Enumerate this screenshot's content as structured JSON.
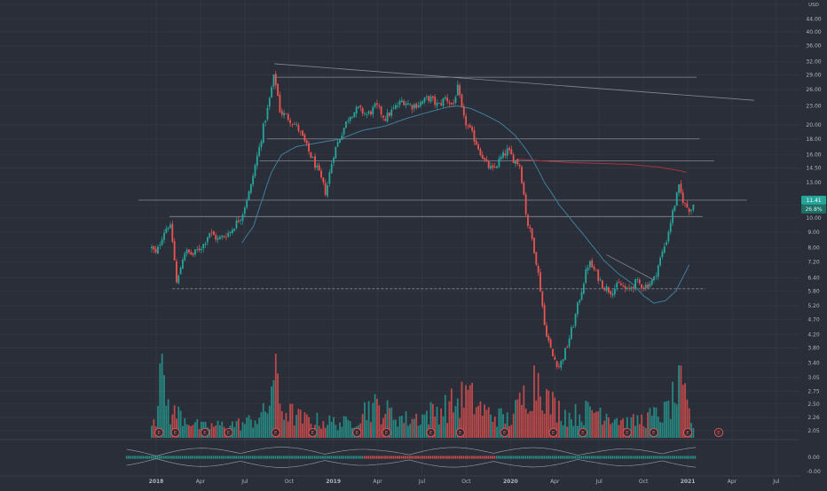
{
  "chart_data": {
    "type": "candlestick",
    "title": "",
    "price_axis": {
      "scale": "log",
      "ticks": [
        2.05,
        2.26,
        2.5,
        2.75,
        3.05,
        3.4,
        3.8,
        4.2,
        4.7,
        5.2,
        5.8,
        6.4,
        7.2,
        8.0,
        9.0,
        10.0,
        11.0,
        13.0,
        14.5,
        16.0,
        18.0,
        20.0,
        23.0,
        26.0,
        29.0,
        32.0,
        36.0,
        40.0,
        44.0,
        49.0
      ],
      "tick_labels": [
        "2.05",
        "2.26",
        "2.50",
        "2.75",
        "3.05",
        "3.40",
        "3.80",
        "4.20",
        "4.70",
        "5.20",
        "5.80",
        "6.40",
        "7.20",
        "8.00",
        "9.00",
        "10.00",
        "11.00",
        "13.00",
        "14.50",
        "16.00",
        "18.00",
        "20.00",
        "23.00",
        "26.00",
        "29.00",
        "32.00",
        "36.00",
        "40.00",
        "44.00",
        "49.00"
      ],
      "top_label": "USD",
      "range": [
        1.95,
        52.0
      ]
    },
    "oscillator_axis": {
      "tick_labels": [
        "0.00",
        "-0.00"
      ]
    },
    "time_axis": {
      "labels": [
        "2018",
        "Apr",
        "Jul",
        "Oct",
        "2019",
        "Apr",
        "Jul",
        "Oct",
        "2020",
        "Apr",
        "Jul",
        "Oct",
        "2021",
        "Apr",
        "Jul"
      ],
      "positions_month": [
        0,
        3,
        6,
        9,
        12,
        15,
        18,
        21,
        24,
        27,
        30,
        33,
        36,
        39,
        42
      ],
      "bold": [
        "2018",
        "2019",
        "2020",
        "2021"
      ]
    },
    "current_price": {
      "value": 11.41,
      "label": "11.41",
      "countdown": "26.8%"
    },
    "price_keypoints": [
      {
        "m": -0.3,
        "p": 8.0
      },
      {
        "m": 0.0,
        "p": 7.6
      },
      {
        "m": 0.5,
        "p": 9.0
      },
      {
        "m": 0.9,
        "p": 9.6
      },
      {
        "m": 1.1,
        "p": 8.4
      },
      {
        "m": 1.4,
        "p": 6.0
      },
      {
        "m": 1.9,
        "p": 7.8
      },
      {
        "m": 2.5,
        "p": 7.6
      },
      {
        "m": 3.2,
        "p": 8.2
      },
      {
        "m": 3.6,
        "p": 9.0
      },
      {
        "m": 4.2,
        "p": 8.5
      },
      {
        "m": 5.0,
        "p": 9.0
      },
      {
        "m": 5.8,
        "p": 10.2
      },
      {
        "m": 6.4,
        "p": 12.5
      },
      {
        "m": 7.0,
        "p": 17.0
      },
      {
        "m": 7.6,
        "p": 23.0
      },
      {
        "m": 8.0,
        "p": 29.0
      },
      {
        "m": 8.4,
        "p": 22.0
      },
      {
        "m": 9.0,
        "p": 21.0
      },
      {
        "m": 9.6,
        "p": 19.5
      },
      {
        "m": 10.3,
        "p": 16.5
      },
      {
        "m": 11.0,
        "p": 14.0
      },
      {
        "m": 11.5,
        "p": 12.0
      },
      {
        "m": 12.0,
        "p": 16.0
      },
      {
        "m": 12.6,
        "p": 19.0
      },
      {
        "m": 13.1,
        "p": 21.5
      },
      {
        "m": 13.7,
        "p": 22.5
      },
      {
        "m": 14.3,
        "p": 21.5
      },
      {
        "m": 14.9,
        "p": 23.0
      },
      {
        "m": 15.5,
        "p": 21.0
      },
      {
        "m": 16.1,
        "p": 22.5
      },
      {
        "m": 16.7,
        "p": 24.0
      },
      {
        "m": 17.3,
        "p": 23.0
      },
      {
        "m": 17.9,
        "p": 23.5
      },
      {
        "m": 18.5,
        "p": 24.5
      },
      {
        "m": 19.1,
        "p": 23.0
      },
      {
        "m": 19.6,
        "p": 24.5
      },
      {
        "m": 20.1,
        "p": 23.0
      },
      {
        "m": 20.4,
        "p": 26.5
      },
      {
        "m": 20.8,
        "p": 21.0
      },
      {
        "m": 21.3,
        "p": 19.0
      },
      {
        "m": 21.8,
        "p": 17.0
      },
      {
        "m": 22.3,
        "p": 15.0
      },
      {
        "m": 22.8,
        "p": 14.2
      },
      {
        "m": 23.3,
        "p": 15.5
      },
      {
        "m": 23.8,
        "p": 16.5
      },
      {
        "m": 24.2,
        "p": 15.5
      },
      {
        "m": 24.6,
        "p": 15.0
      },
      {
        "m": 25.1,
        "p": 9.8
      },
      {
        "m": 25.5,
        "p": 8.4
      },
      {
        "m": 26.0,
        "p": 6.0
      },
      {
        "m": 26.3,
        "p": 4.5
      },
      {
        "m": 26.8,
        "p": 3.6
      },
      {
        "m": 27.3,
        "p": 3.3
      },
      {
        "m": 27.8,
        "p": 3.8
      },
      {
        "m": 28.3,
        "p": 4.6
      },
      {
        "m": 28.8,
        "p": 5.8
      },
      {
        "m": 29.3,
        "p": 7.2
      },
      {
        "m": 29.8,
        "p": 6.6
      },
      {
        "m": 30.3,
        "p": 6.0
      },
      {
        "m": 30.8,
        "p": 5.8
      },
      {
        "m": 31.4,
        "p": 6.1
      },
      {
        "m": 31.9,
        "p": 5.8
      },
      {
        "m": 32.5,
        "p": 6.2
      },
      {
        "m": 33.1,
        "p": 6.0
      },
      {
        "m": 33.7,
        "p": 6.3
      },
      {
        "m": 34.2,
        "p": 7.5
      },
      {
        "m": 34.6,
        "p": 8.6
      },
      {
        "m": 35.0,
        "p": 10.5
      },
      {
        "m": 35.4,
        "p": 12.5
      },
      {
        "m": 35.8,
        "p": 11.0
      },
      {
        "m": 36.2,
        "p": 10.6
      },
      {
        "m": 36.5,
        "p": 11.4
      }
    ],
    "volume_keypoints": [
      {
        "m": 0.0,
        "v": 0.3
      },
      {
        "m": 0.2,
        "v": 1.0
      },
      {
        "m": 1.0,
        "v": 0.3
      },
      {
        "m": 1.4,
        "v": 0.35
      },
      {
        "m": 3.0,
        "v": 0.15
      },
      {
        "m": 6.0,
        "v": 0.2
      },
      {
        "m": 7.5,
        "v": 0.35
      },
      {
        "m": 8.0,
        "v": 0.95
      },
      {
        "m": 8.5,
        "v": 0.4
      },
      {
        "m": 10.0,
        "v": 0.25
      },
      {
        "m": 13.0,
        "v": 0.2
      },
      {
        "m": 14.5,
        "v": 0.45
      },
      {
        "m": 17.0,
        "v": 0.25
      },
      {
        "m": 18.0,
        "v": 0.3
      },
      {
        "m": 20.5,
        "v": 0.5
      },
      {
        "m": 21.0,
        "v": 0.6
      },
      {
        "m": 22.3,
        "v": 0.35
      },
      {
        "m": 24.0,
        "v": 0.25
      },
      {
        "m": 25.0,
        "v": 0.6
      },
      {
        "m": 26.0,
        "v": 0.9
      },
      {
        "m": 26.5,
        "v": 0.5
      },
      {
        "m": 28.0,
        "v": 0.3
      },
      {
        "m": 30.0,
        "v": 0.4
      },
      {
        "m": 32.0,
        "v": 0.2
      },
      {
        "m": 34.5,
        "v": 0.35
      },
      {
        "m": 35.5,
        "v": 0.7
      },
      {
        "m": 36.5,
        "v": 0.1
      }
    ],
    "ma_fast_keypoints": [
      {
        "m": 5.8,
        "p": 8.3
      },
      {
        "m": 6.6,
        "p": 9.4
      },
      {
        "m": 7.2,
        "p": 11.5
      },
      {
        "m": 7.8,
        "p": 14.0
      },
      {
        "m": 8.5,
        "p": 16.0
      },
      {
        "m": 9.5,
        "p": 17.0
      },
      {
        "m": 11.0,
        "p": 17.5
      },
      {
        "m": 12.5,
        "p": 18.0
      },
      {
        "m": 14.0,
        "p": 19.2
      },
      {
        "m": 15.5,
        "p": 19.8
      },
      {
        "m": 17.0,
        "p": 21.0
      },
      {
        "m": 18.5,
        "p": 22.0
      },
      {
        "m": 19.7,
        "p": 22.8
      },
      {
        "m": 20.4,
        "p": 23.0
      },
      {
        "m": 21.3,
        "p": 22.6
      },
      {
        "m": 22.3,
        "p": 21.5
      },
      {
        "m": 23.3,
        "p": 20.3
      },
      {
        "m": 24.3,
        "p": 18.5
      },
      {
        "m": 25.3,
        "p": 16.0
      },
      {
        "m": 26.3,
        "p": 13.0
      },
      {
        "m": 27.3,
        "p": 11.0
      },
      {
        "m": 28.3,
        "p": 9.6
      },
      {
        "m": 29.3,
        "p": 8.4
      },
      {
        "m": 30.3,
        "p": 7.3
      },
      {
        "m": 31.3,
        "p": 6.6
      },
      {
        "m": 32.3,
        "p": 6.1
      },
      {
        "m": 33.0,
        "p": 5.6
      },
      {
        "m": 33.7,
        "p": 5.3
      },
      {
        "m": 34.5,
        "p": 5.4
      },
      {
        "m": 35.2,
        "p": 5.8
      },
      {
        "m": 35.8,
        "p": 6.6
      },
      {
        "m": 36.2,
        "p": 7.2
      }
    ],
    "ma_slow_keypoints": [
      {
        "m": 24.4,
        "p": 15.5
      },
      {
        "m": 26.0,
        "p": 15.3
      },
      {
        "m": 28.0,
        "p": 15.1
      },
      {
        "m": 30.0,
        "p": 15.0
      },
      {
        "m": 32.0,
        "p": 14.9
      },
      {
        "m": 34.0,
        "p": 14.6
      },
      {
        "m": 35.5,
        "p": 14.2
      },
      {
        "m": 36.0,
        "p": 14.0
      }
    ],
    "horizontal_levels": [
      {
        "m0": 8.0,
        "m1": 36.6,
        "p": 28.5,
        "style": "solid"
      },
      {
        "m0": 7.5,
        "m1": 36.8,
        "p": 18.0,
        "style": "solid"
      },
      {
        "m0": 7.0,
        "m1": 37.8,
        "p": 15.3,
        "style": "solid"
      },
      {
        "m0": -1.2,
        "m1": 40.0,
        "p": 11.41,
        "style": "solid"
      },
      {
        "m0": 0.9,
        "m1": 37.0,
        "p": 10.1,
        "style": "solid"
      },
      {
        "m0": 1.1,
        "m1": 37.2,
        "p": 5.9,
        "style": "dashed"
      }
    ],
    "trend_lines": [
      {
        "m0": 8.0,
        "p0": 31.5,
        "m1": 40.5,
        "p1": 24.0
      },
      {
        "m0": 30.5,
        "p0": 7.6,
        "m1": 33.7,
        "p1": 6.3
      }
    ],
    "earnings_marker_months": [
      0.2,
      1.3,
      3.3,
      4.9,
      8.1,
      10.6,
      13.6,
      15.6,
      18.6,
      20.6,
      23.6,
      26.9,
      28.9,
      31.9,
      33.7,
      36.0,
      38.1
    ],
    "earnings_label": "E",
    "colors": {
      "background": "#2a2e39",
      "up": "#26a69a",
      "down": "#ef5350",
      "ma_fast": "#3f7f9c",
      "ma_slow": "#a8343c",
      "level_line": "#868993",
      "axis_text": "#b2b5be",
      "price_badge": "#26a69a"
    }
  }
}
